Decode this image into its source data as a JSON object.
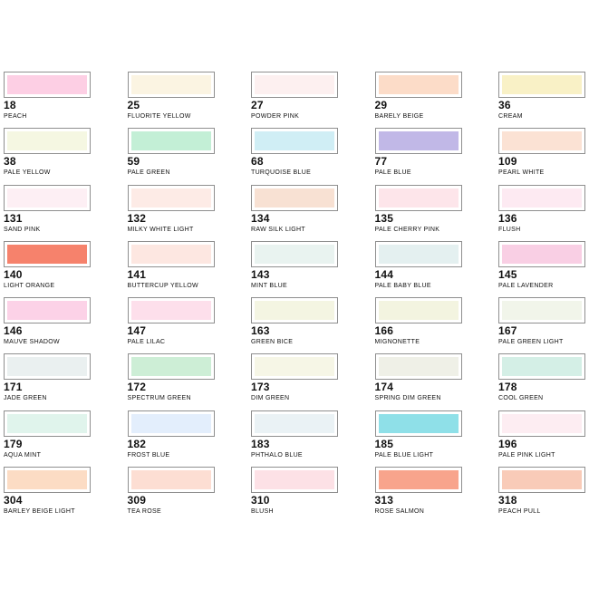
{
  "swatches": [
    {
      "number": "18",
      "name": "PEACH",
      "color": "#fdcfe4"
    },
    {
      "number": "25",
      "name": "FLUORITE YELLOW",
      "color": "#fbf4e2"
    },
    {
      "number": "27",
      "name": "POWDER PINK",
      "color": "#fdf0f0"
    },
    {
      "number": "29",
      "name": "BARELY BEIGE",
      "color": "#fcdcc8"
    },
    {
      "number": "36",
      "name": "CREAM",
      "color": "#f9f1c6"
    },
    {
      "number": "38",
      "name": "PALE YELLOW",
      "color": "#f5f7e2"
    },
    {
      "number": "59",
      "name": "PALE GREEN",
      "color": "#c3efd6"
    },
    {
      "number": "68",
      "name": "TURQUOISE BLUE",
      "color": "#d0eef5"
    },
    {
      "number": "77",
      "name": "PALE BLUE",
      "color": "#c1b8e7"
    },
    {
      "number": "109",
      "name": "PEARL WHITE",
      "color": "#fbe2d4"
    },
    {
      "number": "131",
      "name": "SAND PINK",
      "color": "#fdeff4"
    },
    {
      "number": "132",
      "name": "MILKY WHITE LIGHT",
      "color": "#fdebe6"
    },
    {
      "number": "134",
      "name": "RAW SILK LIGHT",
      "color": "#f8e1d3"
    },
    {
      "number": "135",
      "name": "PALE CHERRY PINK",
      "color": "#fde5ea"
    },
    {
      "number": "136",
      "name": "FLUSH",
      "color": "#fdeaf2"
    },
    {
      "number": "140",
      "name": "LIGHT ORANGE",
      "color": "#f6826c"
    },
    {
      "number": "141",
      "name": "BUTTERCUP YELLOW",
      "color": "#fde7e1"
    },
    {
      "number": "143",
      "name": "MINT BLUE",
      "color": "#e9f3f0"
    },
    {
      "number": "144",
      "name": "PALE BABY BLUE",
      "color": "#e4f0f0"
    },
    {
      "number": "145",
      "name": "PALE LAVENDER",
      "color": "#f9cfe4"
    },
    {
      "number": "146",
      "name": "MAUVE SHADOW",
      "color": "#fcd2e7"
    },
    {
      "number": "147",
      "name": "PALE LILAC",
      "color": "#fddfeb"
    },
    {
      "number": "163",
      "name": "GREEN BICE",
      "color": "#f4f5e2"
    },
    {
      "number": "166",
      "name": "MIGNONETTE",
      "color": "#f3f4e0"
    },
    {
      "number": "167",
      "name": "PALE GREEN LIGHT",
      "color": "#f1f5ea"
    },
    {
      "number": "171",
      "name": "JADE GREEN",
      "color": "#eaf0f0"
    },
    {
      "number": "172",
      "name": "SPECTRUM GREEN",
      "color": "#cdeed6"
    },
    {
      "number": "173",
      "name": "DIM GREEN",
      "color": "#f6f6e6"
    },
    {
      "number": "174",
      "name": "SPRING DIM GREEN",
      "color": "#eff0e7"
    },
    {
      "number": "178",
      "name": "COOL GREEN",
      "color": "#d4efe6"
    },
    {
      "number": "179",
      "name": "AQUA MINT",
      "color": "#e0f4ec"
    },
    {
      "number": "182",
      "name": "FROST BLUE",
      "color": "#e3eefc"
    },
    {
      "number": "183",
      "name": "PHTHALO BLUE",
      "color": "#eaf2f5"
    },
    {
      "number": "185",
      "name": "PALE BLUE LIGHT",
      "color": "#8fe0e8"
    },
    {
      "number": "196",
      "name": "PALE PINK LIGHT",
      "color": "#fdedf2"
    },
    {
      "number": "304",
      "name": "BARLEY BEIGE LIGHT",
      "color": "#fcdcc4"
    },
    {
      "number": "309",
      "name": "TEA ROSE",
      "color": "#fdded3"
    },
    {
      "number": "310",
      "name": "BLUSH",
      "color": "#fde1e6"
    },
    {
      "number": "313",
      "name": "ROSE SALMON",
      "color": "#f8a48c"
    },
    {
      "number": "318",
      "name": "PEACH PULL",
      "color": "#f9cbb8"
    }
  ]
}
